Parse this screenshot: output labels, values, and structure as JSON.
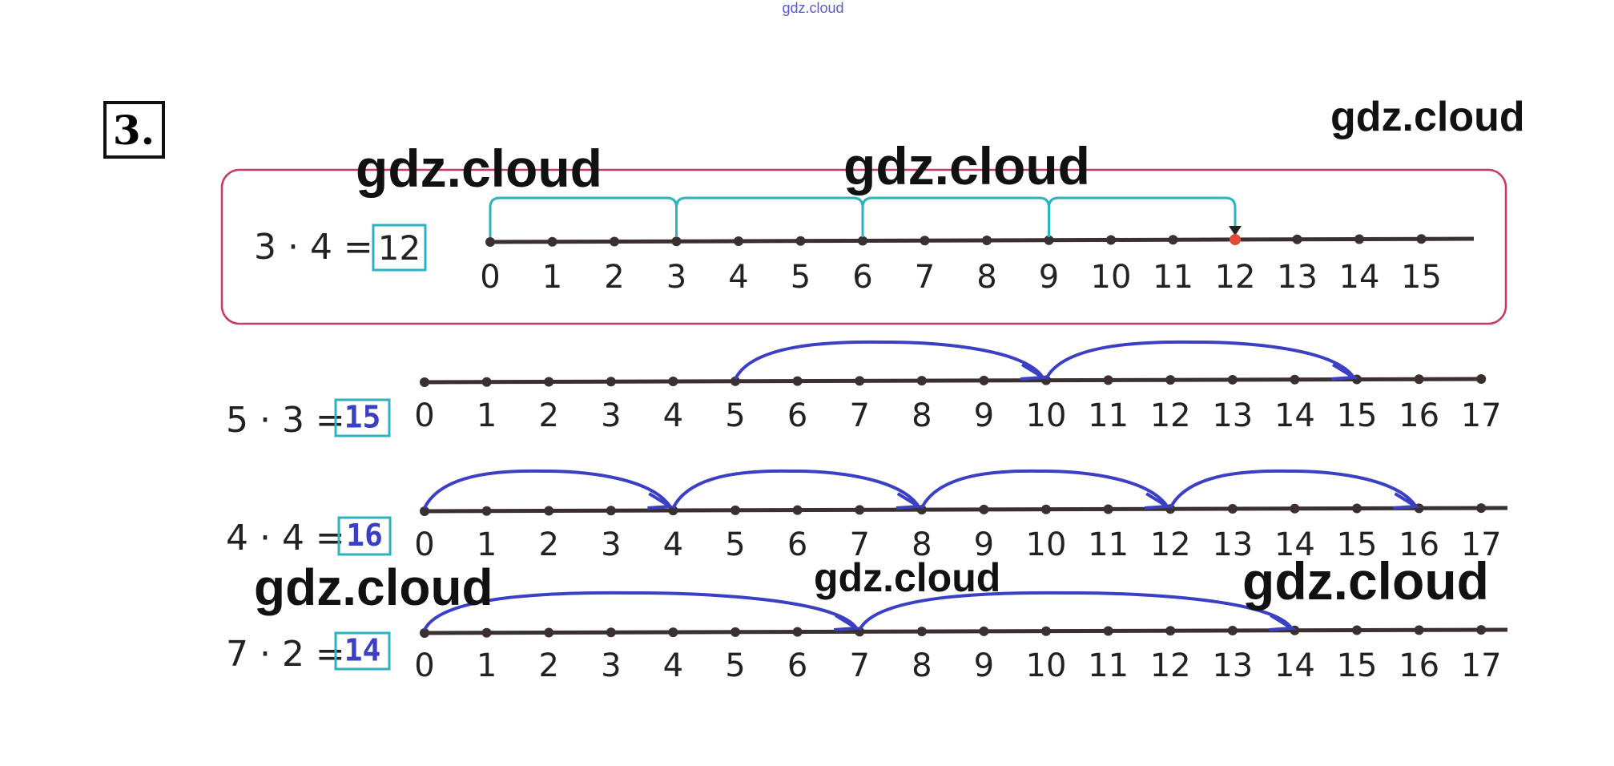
{
  "watermark_top": "gdz.cloud",
  "watermarks": [
    "gdz.cloud",
    "gdz.cloud",
    "gdz.cloud",
    "gdz.cloud",
    "gdz.cloud",
    "gdz.cloud"
  ],
  "task_number": "3.",
  "rows": [
    {
      "expression": "3 · 4 =",
      "answer": "12",
      "ticks": [
        0,
        1,
        2,
        3,
        4,
        5,
        6,
        7,
        8,
        9,
        10,
        11,
        12,
        13,
        14,
        15
      ]
    },
    {
      "expression": "5 · 3 =",
      "answer": "15",
      "ticks": [
        0,
        1,
        2,
        3,
        4,
        5,
        6,
        7,
        8,
        9,
        10,
        11,
        12,
        13,
        14,
        15,
        16,
        17
      ]
    },
    {
      "expression": "4 · 4 =",
      "answer": "16",
      "ticks": [
        0,
        1,
        2,
        3,
        4,
        5,
        6,
        7,
        8,
        9,
        10,
        11,
        12,
        13,
        14,
        15,
        16,
        17
      ]
    },
    {
      "expression": "7 · 2 =",
      "answer": "14",
      "ticks": [
        0,
        1,
        2,
        3,
        4,
        5,
        6,
        7,
        8,
        9,
        10,
        11,
        12,
        13,
        14,
        15,
        16,
        17
      ]
    }
  ]
}
